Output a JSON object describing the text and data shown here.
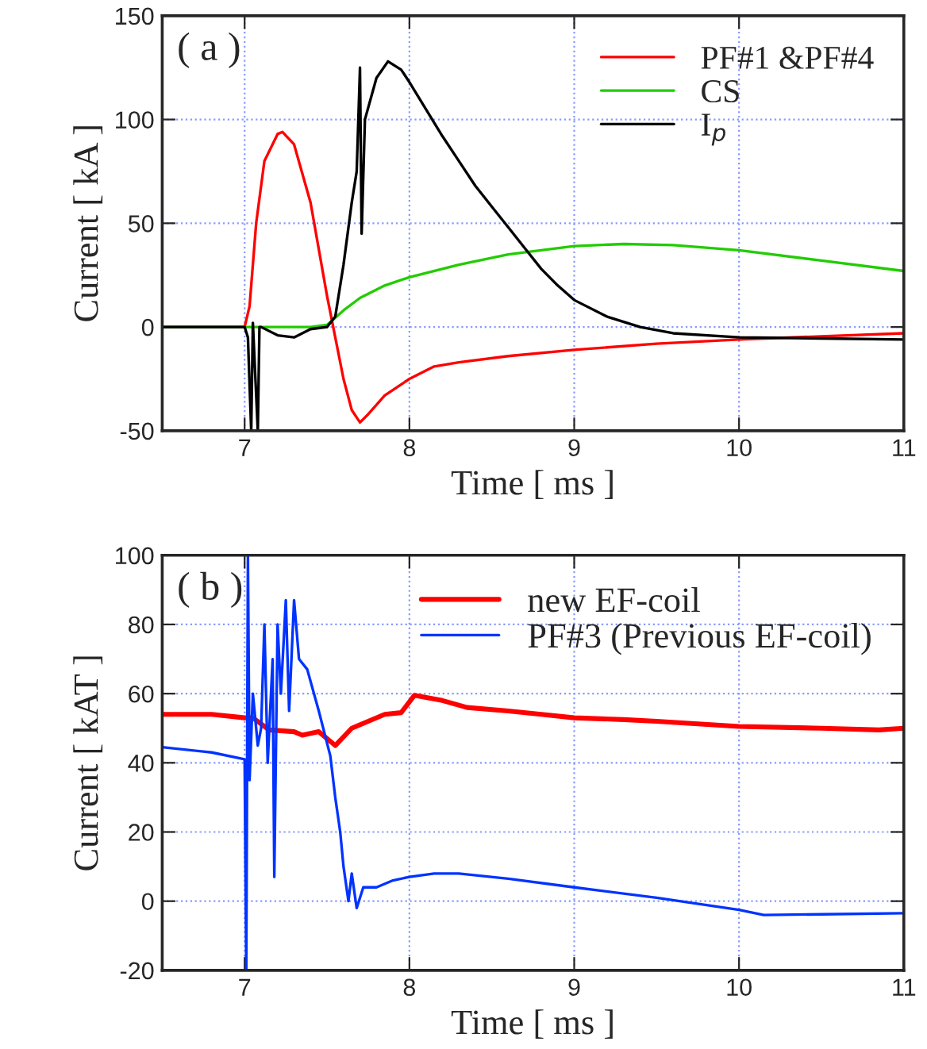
{
  "chart_data": [
    {
      "type": "line",
      "xlabel": "Time [ ms ]",
      "ylabel": "Current [ kA ]",
      "annotations": [
        "( a )"
      ],
      "xlim": [
        6.5,
        11
      ],
      "xticks": [
        7,
        8,
        9,
        10,
        11
      ],
      "ylim": [
        -50,
        150
      ],
      "yticks": [
        -50,
        0,
        50,
        100,
        150
      ],
      "grid": true,
      "legend": "top right",
      "series": [
        {
          "name": "PF#1 &PF#4",
          "color": "#ff0000",
          "x": [
            6.5,
            7.0,
            7.03,
            7.07,
            7.12,
            7.2,
            7.23,
            7.3,
            7.4,
            7.5,
            7.55,
            7.6,
            7.65,
            7.7,
            7.75,
            7.85,
            8.0,
            8.15,
            8.3,
            8.6,
            9.0,
            9.5,
            10.0,
            10.5,
            11
          ],
          "values": [
            0,
            0,
            10,
            50,
            80,
            93,
            94,
            88,
            60,
            15,
            -5,
            -25,
            -40,
            -46,
            -42,
            -33,
            -25,
            -19,
            -17,
            -14,
            -11,
            -8,
            -6,
            -4.5,
            -3
          ]
        },
        {
          "name": "CS",
          "color": "#22cc00",
          "x": [
            6.5,
            7.0,
            7.2,
            7.4,
            7.5,
            7.6,
            7.7,
            7.85,
            8.0,
            8.3,
            8.6,
            9.0,
            9.3,
            9.6,
            10.0,
            10.5,
            11
          ],
          "values": [
            0,
            0,
            0,
            0,
            1,
            8,
            14,
            20,
            24,
            30,
            35,
            39,
            40,
            39.5,
            37,
            32,
            27
          ]
        },
        {
          "name": "I$_{p}$",
          "color": "#000000",
          "x": [
            6.5,
            7.0,
            7.02,
            7.04,
            7.05,
            7.08,
            7.09,
            7.1,
            7.2,
            7.3,
            7.4,
            7.5,
            7.55,
            7.6,
            7.65,
            7.68,
            7.7,
            7.71,
            7.73,
            7.8,
            7.87,
            7.95,
            8.0,
            8.1,
            8.2,
            8.3,
            8.4,
            8.5,
            8.6,
            8.7,
            8.8,
            8.9,
            9.0,
            9.2,
            9.4,
            9.6,
            10.0,
            10.5,
            11
          ],
          "values": [
            0,
            0,
            -5,
            -50,
            2,
            -50,
            0,
            0,
            -4,
            -5,
            -1,
            0,
            5,
            30,
            60,
            75,
            125,
            45,
            100,
            120,
            128,
            124,
            118,
            105,
            92,
            80,
            68,
            58,
            48,
            38,
            28,
            20,
            13,
            5,
            0,
            -3,
            -5,
            -5.5,
            -6
          ]
        }
      ]
    },
    {
      "type": "line",
      "xlabel": "Time [ ms ]",
      "ylabel": "Current [ kAT ]",
      "annotations": [
        "( b )"
      ],
      "xlim": [
        6.5,
        11
      ],
      "xticks": [
        7,
        8,
        9,
        10,
        11
      ],
      "ylim": [
        -20,
        100
      ],
      "yticks": [
        -20,
        0,
        20,
        40,
        60,
        80,
        100
      ],
      "grid": true,
      "legend": "top right",
      "series": [
        {
          "name": "new EF-coil",
          "color": "#ff0000",
          "x": [
            6.5,
            6.8,
            7.0,
            7.05,
            7.15,
            7.3,
            7.35,
            7.45,
            7.55,
            7.65,
            7.75,
            7.85,
            7.95,
            8.03,
            8.2,
            8.35,
            8.6,
            8.8,
            9.0,
            9.3,
            9.5,
            10.0,
            10.5,
            10.85,
            11
          ],
          "values": [
            54,
            54,
            53,
            53,
            49.5,
            49,
            48,
            49,
            45,
            50,
            52,
            54,
            54.5,
            59.5,
            58,
            56,
            55,
            54,
            53,
            52.5,
            52,
            50.5,
            50,
            49.5,
            50
          ]
        },
        {
          "name": "PF#3 (Previous EF-coil)",
          "color": "#0033ff",
          "x": [
            6.5,
            6.8,
            7.0,
            7.01,
            7.02,
            7.03,
            7.05,
            7.08,
            7.1,
            7.12,
            7.14,
            7.17,
            7.18,
            7.2,
            7.22,
            7.25,
            7.27,
            7.3,
            7.33,
            7.38,
            7.45,
            7.52,
            7.55,
            7.58,
            7.6,
            7.63,
            7.65,
            7.68,
            7.72,
            7.8,
            7.9,
            8.0,
            8.15,
            8.3,
            8.6,
            9.0,
            9.5,
            10.0,
            10.15,
            10.5,
            11
          ],
          "values": [
            44.5,
            43,
            41,
            -20,
            100,
            35,
            60,
            45,
            50,
            80,
            40,
            70,
            7,
            80,
            60,
            87,
            55,
            87,
            70,
            67,
            55,
            42,
            30,
            20,
            10,
            0,
            8,
            -2,
            4,
            4,
            6,
            7,
            8,
            8,
            6.5,
            4,
            1,
            -2.5,
            -4,
            -3.8,
            -3.5
          ]
        }
      ]
    }
  ]
}
